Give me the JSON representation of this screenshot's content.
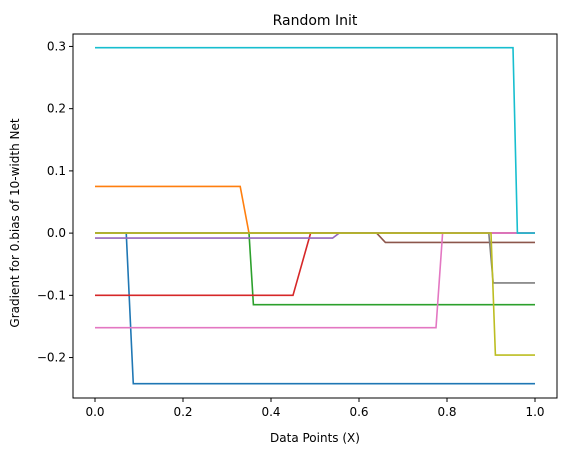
{
  "chart_data": {
    "type": "line",
    "title": "Random Init",
    "xlabel": "Data Points (X)",
    "ylabel": "Gradient for 0.bias of 10-width Net",
    "xlim": [
      -0.05,
      1.05
    ],
    "ylim": [
      -0.265,
      0.32
    ],
    "xticks": [
      0.0,
      0.2,
      0.4,
      0.6,
      0.8,
      1.0
    ],
    "xtick_labels": [
      "0.0",
      "0.2",
      "0.4",
      "0.6",
      "0.8",
      "1.0"
    ],
    "yticks": [
      -0.2,
      -0.1,
      0.0,
      0.1,
      0.2,
      0.3
    ],
    "ytick_labels": [
      "−0.2",
      "−0.1",
      "0.0",
      "0.1",
      "0.2",
      "0.3"
    ],
    "grid": false,
    "legend": false,
    "series": [
      {
        "color": "#1f77b4",
        "x": [
          0,
          0.071,
          0.087,
          1.0
        ],
        "y": [
          0,
          0,
          -0.242,
          -0.242
        ]
      },
      {
        "color": "#ff7f0e",
        "x": [
          0,
          0.33,
          0.35,
          1.0
        ],
        "y": [
          0.075,
          0.075,
          0,
          0
        ]
      },
      {
        "color": "#2ca02c",
        "x": [
          0,
          0.35,
          0.36,
          1.0
        ],
        "y": [
          0,
          0,
          -0.115,
          -0.115
        ]
      },
      {
        "color": "#d62728",
        "x": [
          0,
          0.45,
          0.49,
          1.0
        ],
        "y": [
          -0.1,
          -0.1,
          0,
          0
        ]
      },
      {
        "color": "#9467bd",
        "x": [
          0,
          0.54,
          0.555,
          1.0
        ],
        "y": [
          -0.008,
          -0.008,
          0,
          0
        ]
      },
      {
        "color": "#8c564b",
        "x": [
          0,
          0.64,
          0.66,
          1.0
        ],
        "y": [
          0,
          0,
          -0.015,
          -0.015
        ]
      },
      {
        "color": "#e377c2",
        "x": [
          0,
          0.775,
          0.79,
          1.0
        ],
        "y": [
          -0.152,
          -0.152,
          0,
          0
        ]
      },
      {
        "color": "#7f7f7f",
        "x": [
          0,
          0.895,
          0.905,
          1.0
        ],
        "y": [
          0,
          0,
          -0.08,
          -0.08
        ]
      },
      {
        "color": "#bcbd22",
        "x": [
          0,
          0.9,
          0.91,
          1.0
        ],
        "y": [
          0,
          0,
          -0.196,
          -0.196
        ]
      },
      {
        "color": "#17becf",
        "x": [
          0,
          0.95,
          0.96,
          1.0
        ],
        "y": [
          0.298,
          0.298,
          0,
          0
        ]
      }
    ]
  }
}
